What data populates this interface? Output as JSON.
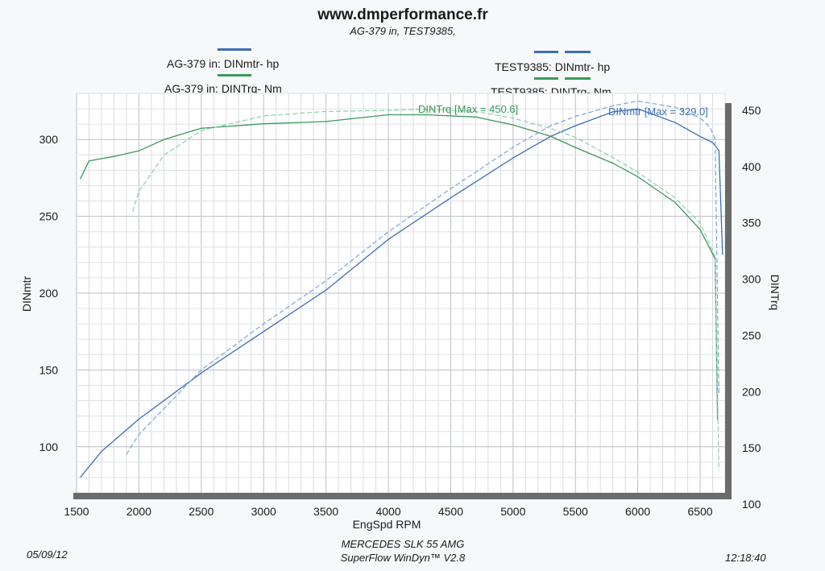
{
  "header": {
    "site": "www.dmperformance.fr",
    "subtitle": "AG-379 in, TEST9385,"
  },
  "legend": {
    "left": [
      "AG-379 in: DINmtr-  hp",
      "AG-379 in: DINTrq-  Nm"
    ],
    "right": [
      "TEST9385: DINmtr-  hp",
      "TEST9385: DINTrq-  Nm"
    ]
  },
  "footer": {
    "date": "05/09/12",
    "vehicle": "MERCEDES SLK 55 AMG",
    "software": "SuperFlow WinDyn™ V2.8",
    "time": "12:18:40"
  },
  "colors": {
    "power": "#3c6eb4",
    "torque": "#3a9a5a",
    "power_light": "#7aa7d8",
    "torque_light": "#8fd0a6",
    "frame": "#6b6b6b"
  },
  "chart_data": {
    "type": "line",
    "xlabel": "EngSpd  RPM",
    "ylabel_left": "DINmtr",
    "ylabel_right": "DINTrq",
    "xlim": [
      1500,
      6700
    ],
    "ylim_left": [
      70,
      330
    ],
    "ylim_right": [
      110,
      465
    ],
    "x_ticks": [
      1500,
      2000,
      2500,
      3000,
      3500,
      4000,
      4500,
      5000,
      5500,
      6000,
      6500
    ],
    "y_left_ticks": [
      100,
      150,
      200,
      250,
      300
    ],
    "y_right_ticks": [
      100,
      150,
      200,
      250,
      300,
      350,
      400,
      450
    ],
    "annotations": {
      "torque_max": "DINTrq [Max = 450.6]",
      "power_max": "DINmtr [Max = 329.0]"
    },
    "series": [
      {
        "name": "AG-379 in: DINmtr-  hp",
        "axis": "left",
        "style": "solid",
        "x": [
          1530,
          1700,
          2000,
          2500,
          3000,
          3500,
          4000,
          4500,
          5000,
          5300,
          5500,
          5800,
          6000,
          6300,
          6500,
          6600,
          6650,
          6680
        ],
        "y": [
          80,
          97,
          118,
          148,
          175,
          202,
          235,
          262,
          288,
          302,
          309,
          318,
          320,
          311,
          302,
          298,
          293,
          225
        ]
      },
      {
        "name": "AG-379 in: DINTrq-  Nm",
        "axis": "right",
        "style": "solid",
        "x": [
          1530,
          1600,
          1800,
          2000,
          2200,
          2500,
          3000,
          3500,
          4000,
          4300,
          4700,
          5000,
          5300,
          5500,
          5800,
          6000,
          6300,
          6500,
          6620,
          6640
        ],
        "y": [
          389,
          405,
          409,
          414,
          424,
          434,
          438,
          440,
          446,
          446,
          444,
          437,
          427,
          417,
          403,
          391,
          368,
          344,
          318,
          175
        ]
      },
      {
        "name": "TEST9385: DINmtr-  hp",
        "axis": "left",
        "style": "dashed",
        "x": [
          1900,
          2000,
          2500,
          3000,
          3500,
          4000,
          4500,
          5000,
          5300,
          5500,
          5800,
          6000,
          6300,
          6500,
          6580,
          6620,
          6650
        ],
        "y": [
          95,
          108,
          150,
          180,
          208,
          240,
          268,
          295,
          309,
          315,
          322,
          325,
          321,
          314,
          308,
          300,
          135
        ]
      },
      {
        "name": "TEST9385: DINTrq-  Nm",
        "axis": "right",
        "style": "dashed",
        "x": [
          1950,
          2000,
          2200,
          2500,
          3000,
          3500,
          4000,
          4300,
          4700,
          5000,
          5300,
          5500,
          5800,
          6000,
          6300,
          6500,
          6620,
          6650
        ],
        "y": [
          360,
          378,
          410,
          432,
          445,
          449,
          450,
          451,
          449,
          443,
          434,
          426,
          408,
          395,
          372,
          350,
          320,
          130
        ]
      }
    ]
  }
}
